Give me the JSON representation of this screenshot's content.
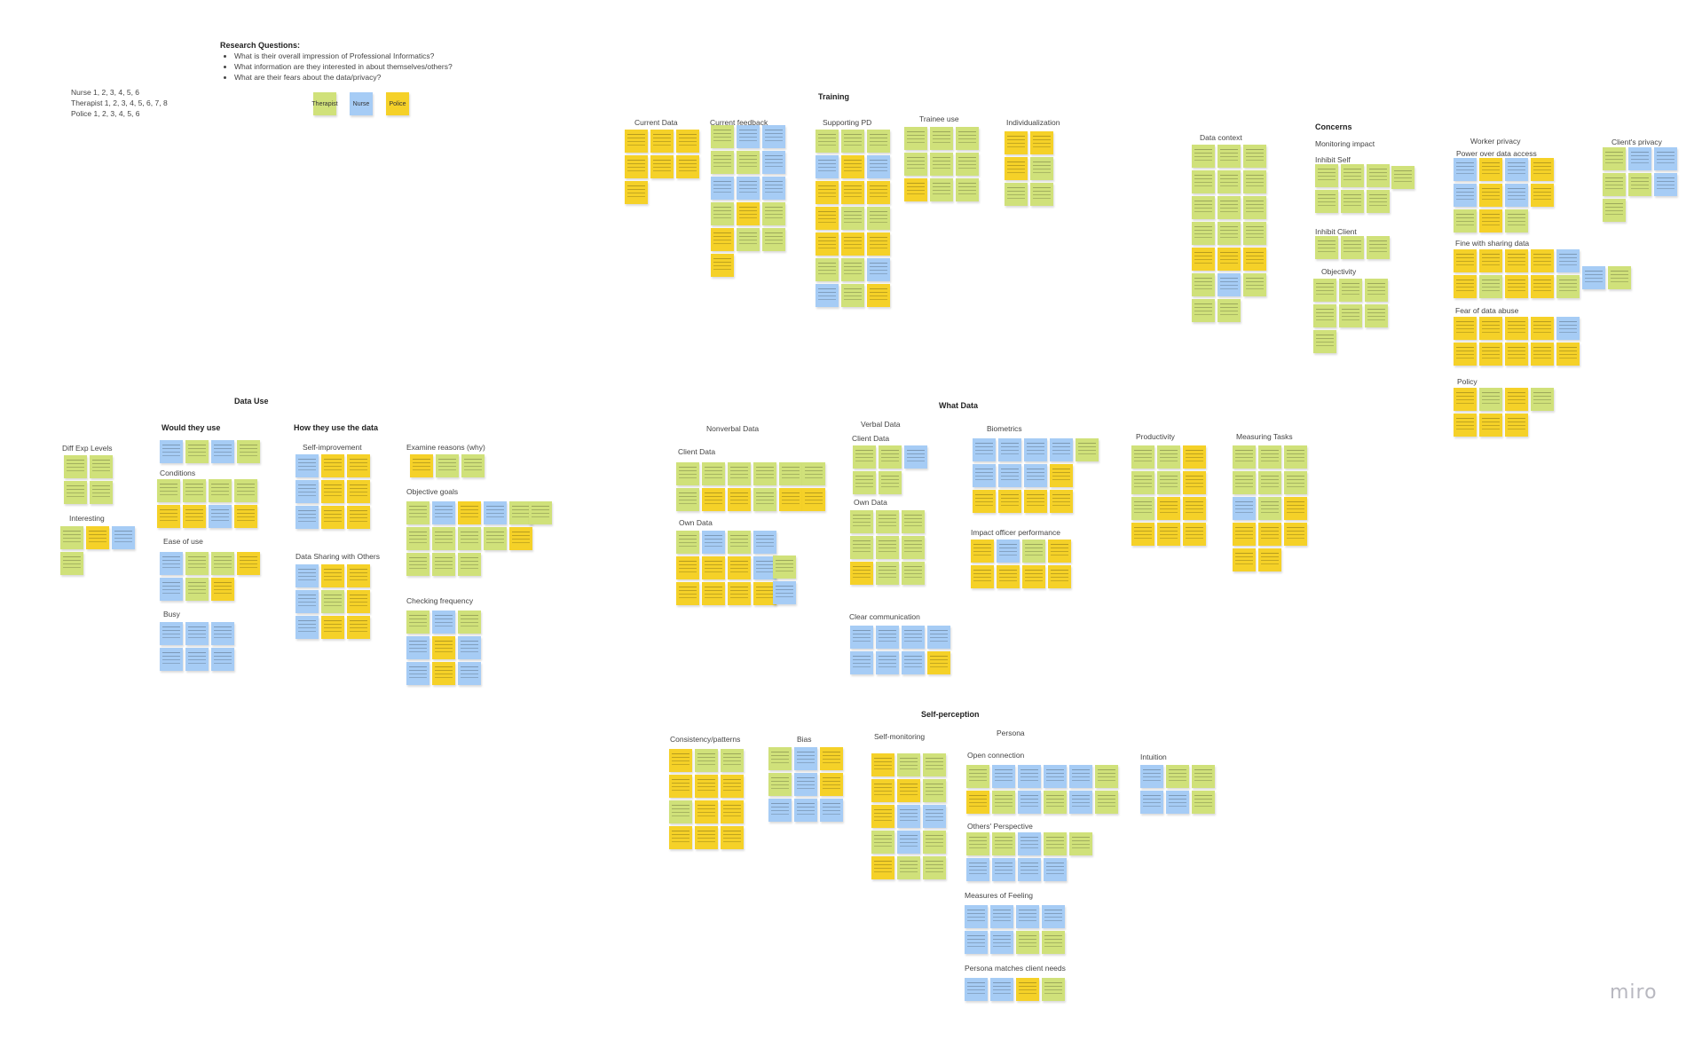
{
  "research": {
    "title": "Research Questions:",
    "questions": [
      "What is their overall impression of Professional Informatics?",
      "What information are they interested in about themselves/others?",
      "What are their fears about the data/privacy?"
    ]
  },
  "participants": {
    "nurse": "Nurse 1, 2, 3, 4, 5, 6",
    "therapist": "Therapist 1, 2, 3, 4, 5, 6, 7, 8",
    "police": "Police 1, 2, 3, 4, 5, 6"
  },
  "legend": {
    "therapist": "Therapist",
    "nurse": "Nurse",
    "police": "Police"
  },
  "colors": {
    "therapist": "#d0e17a",
    "nurse": "#a6ccf5",
    "police": "#f5d128"
  },
  "sections": {
    "training": "Training",
    "data_use": "Data Use",
    "what_data": "What Data",
    "self_perception": "Self-perception",
    "concerns": "Concerns",
    "persona": "Persona"
  },
  "labels": {
    "current_data": "Current Data",
    "current_feedback": "Current feedback",
    "supporting_pd": "Supporting PD",
    "trainee_use": "Trainee use",
    "individualization": "Individualization",
    "data_context": "Data context",
    "monitoring_impact": "Monitoring impact",
    "inhibit_self": "Inhibit Self",
    "inhibit_client": "Inhibit Client",
    "objectivity": "Objectivity",
    "worker_privacy": "Worker privacy",
    "clients_privacy": "Client's privacy",
    "power_over_data": "Power over data access",
    "fine_sharing": "Fine with sharing data",
    "fear_abuse": "Fear of data abuse",
    "policy": "Policy",
    "would_they_use": "Would they use",
    "how_they_use": "How they use the data",
    "diff_exp": "Diff Exp Levels",
    "interesting": "Interesting",
    "conditions": "Conditions",
    "ease_of_use": "Ease of use",
    "busy": "Busy",
    "self_improvement": "Self-improvement",
    "data_sharing_others": "Data Sharing with Others",
    "examine_reasons": "Examine reasons (why)",
    "objective_goals": "Objective goals",
    "checking_frequency": "Checking frequency",
    "nonverbal_data": "Nonverbal Data",
    "client_data_nv": "Client Data",
    "own_data_nv": "Own Data",
    "verbal_data": "Verbal Data",
    "client_data_v": "Client Data",
    "own_data_v": "Own Data",
    "clear_communication": "Clear communication",
    "biometrics": "Biometrics",
    "impact_officer": "Impact officer performance",
    "productivity": "Productivity",
    "measuring_tasks": "Measuring Tasks",
    "consistency": "Consistency/patterns",
    "bias": "Bias",
    "self_monitoring": "Self-monitoring",
    "open_connection": "Open connection",
    "others_perspective": "Others' Perspective",
    "measures_feeling": "Measures of Feeling",
    "persona_matches": "Persona matches client needs",
    "intuition": "Intuition"
  },
  "logo": "miro"
}
